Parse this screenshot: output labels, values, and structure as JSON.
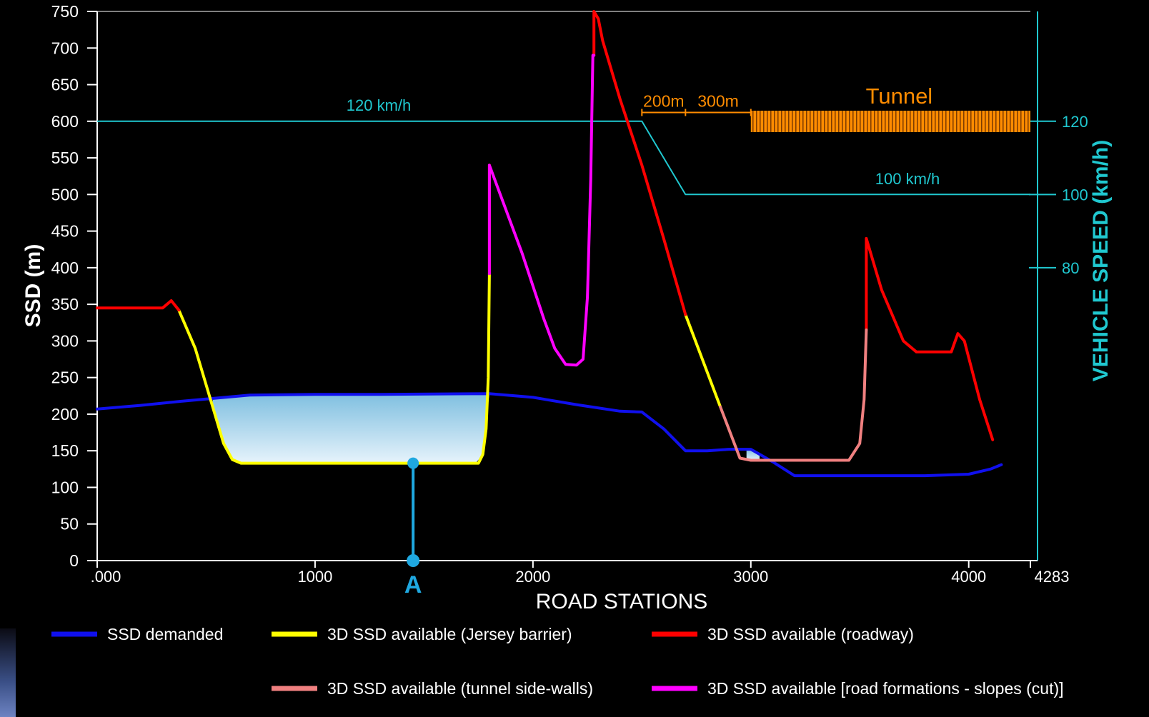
{
  "chart_data": {
    "type": "line",
    "title": "",
    "xlabel": "ROAD STATIONS",
    "ylabel": "SSD (m)",
    "y2label": "VEHICLE SPEED (km/h)",
    "xlim": [
      0,
      4283
    ],
    "ylim": [
      0,
      750
    ],
    "x_ticks": [
      ".000",
      "1000",
      "2000",
      "3000",
      "4000",
      "4283"
    ],
    "x_tick_values": [
      0,
      1000,
      2000,
      3000,
      4000,
      4283
    ],
    "y_ticks": [
      0,
      50,
      100,
      150,
      200,
      250,
      300,
      350,
      400,
      450,
      500,
      550,
      600,
      650,
      700,
      750
    ],
    "y2_ticks": [
      {
        "label": "120",
        "ssd_value": 600
      },
      {
        "label": "100",
        "ssd_value": 500
      },
      {
        "label": "80",
        "ssd_value": 400
      }
    ],
    "grid": false,
    "legend_position": "bottom",
    "colors": {
      "demanded": "#1010ee",
      "jersey": "#ffff00",
      "roadway": "#ff0000",
      "tunnel_walls": "#f08080",
      "slopes": "#ff00ff",
      "speed": "#20c8d0",
      "tunnel": "#ff8c00",
      "marker": "#1fa8e0"
    },
    "series": [
      {
        "name": "SSD demanded",
        "color": "#1010ee",
        "points": [
          [
            0,
            207
          ],
          [
            200,
            212
          ],
          [
            400,
            218
          ],
          [
            700,
            226
          ],
          [
            1000,
            227
          ],
          [
            1300,
            227
          ],
          [
            1800,
            228
          ],
          [
            2000,
            223
          ],
          [
            2200,
            213
          ],
          [
            2400,
            204
          ],
          [
            2500,
            203
          ],
          [
            2600,
            180
          ],
          [
            2700,
            150
          ],
          [
            2800,
            150
          ],
          [
            2900,
            152
          ],
          [
            3000,
            152
          ],
          [
            3100,
            135
          ],
          [
            3200,
            116
          ],
          [
            3500,
            116
          ],
          [
            3800,
            116
          ],
          [
            4000,
            118
          ],
          [
            4100,
            125
          ],
          [
            4150,
            131
          ]
        ]
      },
      {
        "name": "3D SSD available (Jersey barrier)",
        "color": "#ffff00",
        "segments": [
          [
            [
              375,
              342
            ],
            [
              450,
              290
            ],
            [
              520,
              220
            ],
            [
              580,
              160
            ],
            [
              620,
              138
            ],
            [
              660,
              133
            ],
            [
              1000,
              133
            ],
            [
              1400,
              133
            ],
            [
              1750,
              133
            ],
            [
              1770,
              145
            ],
            [
              1785,
              180
            ],
            [
              1795,
              250
            ],
            [
              1800,
              392
            ]
          ],
          [
            [
              2700,
              336
            ],
            [
              2860,
              210
            ]
          ]
        ]
      },
      {
        "name": "3D SSD available (roadway)",
        "color": "#ff0000",
        "segments": [
          [
            [
              0,
              345
            ],
            [
              300,
              345
            ],
            [
              340,
              355
            ],
            [
              375,
              342
            ]
          ],
          [
            [
              1800,
              392
            ],
            [
              1800,
              540
            ]
          ],
          [
            [
              2280,
              690
            ],
            [
              2280,
              750
            ],
            [
              2300,
              740
            ],
            [
              2320,
              710
            ],
            [
              2400,
              630
            ],
            [
              2500,
              540
            ],
            [
              2600,
              440
            ],
            [
              2700,
              336
            ]
          ],
          [
            [
              3530,
              315
            ],
            [
              3530,
              440
            ],
            [
              3560,
              410
            ],
            [
              3600,
              370
            ],
            [
              3700,
              300
            ],
            [
              3760,
              285
            ],
            [
              3920,
              285
            ],
            [
              3950,
              310
            ],
            [
              3980,
              300
            ],
            [
              4050,
              220
            ],
            [
              4110,
              165
            ]
          ]
        ]
      },
      {
        "name": "3D SSD available (tunnel side-walls)",
        "color": "#f08080",
        "segments": [
          [
            [
              2860,
              210
            ],
            [
              2950,
              140
            ],
            [
              3000,
              137
            ],
            [
              3200,
              137
            ],
            [
              3450,
              137
            ],
            [
              3500,
              160
            ],
            [
              3520,
              220
            ],
            [
              3530,
              315
            ]
          ]
        ]
      },
      {
        "name": "3D SSD available [road formations - slopes (cut)]",
        "color": "#ff00ff",
        "segments": [
          [
            [
              1800,
              392
            ],
            [
              1800,
              540
            ],
            [
              1850,
              500
            ],
            [
              1950,
              420
            ],
            [
              2050,
              330
            ],
            [
              2100,
              290
            ],
            [
              2150,
              268
            ],
            [
              2200,
              267
            ],
            [
              2230,
              275
            ],
            [
              2250,
              360
            ],
            [
              2265,
              520
            ],
            [
              2275,
              690
            ],
            [
              2280,
              690
            ]
          ]
        ]
      }
    ],
    "speed_profile": {
      "color": "#20c8d0",
      "points": [
        [
          0,
          600
        ],
        [
          2500,
          600
        ],
        [
          2700,
          500
        ],
        [
          4283,
          500
        ]
      ],
      "labels": [
        "120 km/h",
        "100 km/h"
      ]
    },
    "annotations": [
      {
        "text": "200m",
        "x_range": [
          2500,
          2700
        ],
        "y": 612
      },
      {
        "text": "300m",
        "x_range": [
          2700,
          3000
        ],
        "y": 612
      },
      {
        "text": "Tunnel",
        "x_range": [
          3000,
          4283
        ],
        "y": 600
      },
      {
        "text": "A",
        "x": 1450,
        "y": 0
      }
    ],
    "shaded_deficit": [
      {
        "x_range": [
          530,
          1800
        ],
        "color": "#aad8ef"
      },
      {
        "x_range": [
          2980,
          3040
        ],
        "color": "#aad8ef"
      }
    ],
    "marker_A": {
      "x": 1450,
      "y_top": 133,
      "y_bottom": 0
    }
  }
}
